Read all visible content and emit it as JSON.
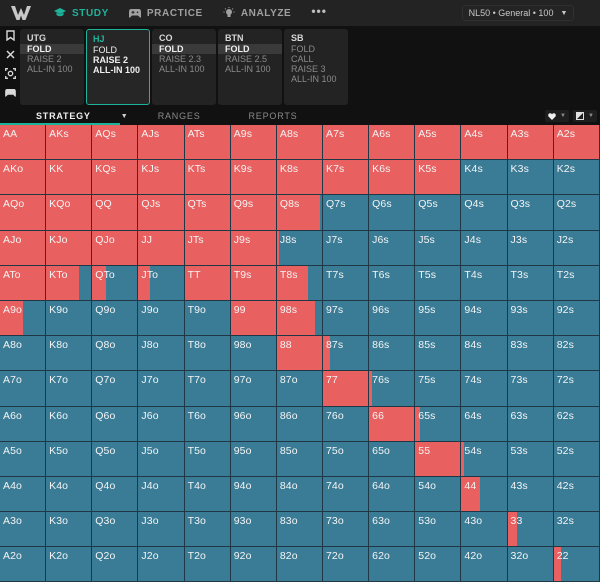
{
  "topbar": {
    "logo": "W",
    "nav": [
      {
        "label": "STUDY",
        "icon": "graduation-cap-icon",
        "active": true
      },
      {
        "label": "PRACTICE",
        "icon": "gamepad-icon",
        "active": false
      },
      {
        "label": "ANALYZE",
        "icon": "lightbulb-icon",
        "active": false
      }
    ],
    "more": "•••",
    "game_select": "NL50 • General • 100",
    "game_select_caret": "▼"
  },
  "sidebar": [
    {
      "icon": "bookmark-icon"
    },
    {
      "icon": "close-icon"
    },
    {
      "icon": "focus-icon"
    },
    {
      "icon": "gamepad-icon"
    }
  ],
  "positions": [
    {
      "name": "UTG",
      "actions": [
        "FOLD",
        "RAISE 2",
        "ALL-IN 100"
      ],
      "selected": 0,
      "active": false
    },
    {
      "name": "HJ",
      "actions": [
        "FOLD",
        "RAISE 2",
        "ALL-IN 100"
      ],
      "selected": -1,
      "active": true
    },
    {
      "name": "CO",
      "actions": [
        "FOLD",
        "RAISE 2.3",
        "ALL-IN 100"
      ],
      "selected": 0,
      "active": false
    },
    {
      "name": "BTN",
      "actions": [
        "FOLD",
        "RAISE 2.5",
        "ALL-IN 100"
      ],
      "selected": 0,
      "active": false
    },
    {
      "name": "SB",
      "actions": [
        "FOLD",
        "CALL",
        "RAISE 3",
        "ALL-IN 100"
      ],
      "selected": -1,
      "active": false
    }
  ],
  "tabs": {
    "strategy": "STRATEGY",
    "strategy_caret": "▼",
    "ranges": "RANGES",
    "reports": "REPORTS"
  },
  "colors": {
    "accent": "#1db39b",
    "raise": "#e96060",
    "fold": "#3a7c96"
  },
  "grid": {
    "rows": [
      [
        [
          "AA",
          1
        ],
        [
          "AKs",
          1
        ],
        [
          "AQs",
          1
        ],
        [
          "AJs",
          1
        ],
        [
          "ATs",
          1
        ],
        [
          "A9s",
          1
        ],
        [
          "A8s",
          1
        ],
        [
          "A7s",
          1
        ],
        [
          "A6s",
          1
        ],
        [
          "A5s",
          1
        ],
        [
          "A4s",
          1
        ],
        [
          "A3s",
          1
        ],
        [
          "A2s",
          1
        ]
      ],
      [
        [
          "AKo",
          1
        ],
        [
          "KK",
          1
        ],
        [
          "KQs",
          1
        ],
        [
          "KJs",
          1
        ],
        [
          "KTs",
          1
        ],
        [
          "K9s",
          1
        ],
        [
          "K8s",
          1
        ],
        [
          "K7s",
          1
        ],
        [
          "K6s",
          1
        ],
        [
          "K5s",
          1
        ],
        [
          "K4s",
          0
        ],
        [
          "K3s",
          0
        ],
        [
          "K2s",
          0
        ]
      ],
      [
        [
          "AQo",
          1
        ],
        [
          "KQo",
          1
        ],
        [
          "QQ",
          1
        ],
        [
          "QJs",
          1
        ],
        [
          "QTs",
          1
        ],
        [
          "Q9s",
          1
        ],
        [
          "Q8s",
          0.95
        ],
        [
          "Q7s",
          0
        ],
        [
          "Q6s",
          0
        ],
        [
          "Q5s",
          0
        ],
        [
          "Q4s",
          0
        ],
        [
          "Q3s",
          0
        ],
        [
          "Q2s",
          0
        ]
      ],
      [
        [
          "AJo",
          1
        ],
        [
          "KJo",
          1
        ],
        [
          "QJo",
          1
        ],
        [
          "JJ",
          1
        ],
        [
          "JTs",
          1
        ],
        [
          "J9s",
          1
        ],
        [
          "J8s",
          0.05
        ],
        [
          "J7s",
          0
        ],
        [
          "J6s",
          0
        ],
        [
          "J5s",
          0
        ],
        [
          "J4s",
          0
        ],
        [
          "J3s",
          0
        ],
        [
          "J2s",
          0
        ]
      ],
      [
        [
          "ATo",
          1
        ],
        [
          "KTo",
          0.73
        ],
        [
          "QTo",
          0.3
        ],
        [
          "JTo",
          0.26
        ],
        [
          "TT",
          1
        ],
        [
          "T9s",
          1
        ],
        [
          "T8s",
          0.68
        ],
        [
          "T7s",
          0
        ],
        [
          "T6s",
          0
        ],
        [
          "T5s",
          0
        ],
        [
          "T4s",
          0
        ],
        [
          "T3s",
          0
        ],
        [
          "T2s",
          0
        ]
      ],
      [
        [
          "A9o",
          0.5
        ],
        [
          "K9o",
          0
        ],
        [
          "Q9o",
          0
        ],
        [
          "J9o",
          0
        ],
        [
          "T9o",
          0
        ],
        [
          "99",
          1
        ],
        [
          "98s",
          0.85
        ],
        [
          "97s",
          0
        ],
        [
          "96s",
          0
        ],
        [
          "95s",
          0
        ],
        [
          "94s",
          0
        ],
        [
          "93s",
          0
        ],
        [
          "92s",
          0
        ]
      ],
      [
        [
          "A8o",
          0
        ],
        [
          "K8o",
          0
        ],
        [
          "Q8o",
          0
        ],
        [
          "J8o",
          0
        ],
        [
          "T8o",
          0
        ],
        [
          "98o",
          0
        ],
        [
          "88",
          1
        ],
        [
          "87s",
          0.15
        ],
        [
          "86s",
          0
        ],
        [
          "85s",
          0
        ],
        [
          "84s",
          0
        ],
        [
          "83s",
          0
        ],
        [
          "82s",
          0
        ]
      ],
      [
        [
          "A7o",
          0
        ],
        [
          "K7o",
          0
        ],
        [
          "Q7o",
          0
        ],
        [
          "J7o",
          0
        ],
        [
          "T7o",
          0
        ],
        [
          "97o",
          0
        ],
        [
          "87o",
          0
        ],
        [
          "77",
          1
        ],
        [
          "76s",
          0.06
        ],
        [
          "75s",
          0
        ],
        [
          "74s",
          0
        ],
        [
          "73s",
          0
        ],
        [
          "72s",
          0
        ]
      ],
      [
        [
          "A6o",
          0
        ],
        [
          "K6o",
          0
        ],
        [
          "Q6o",
          0
        ],
        [
          "J6o",
          0
        ],
        [
          "T6o",
          0
        ],
        [
          "96o",
          0
        ],
        [
          "86o",
          0
        ],
        [
          "76o",
          0
        ],
        [
          "66",
          1
        ],
        [
          "65s",
          0.1
        ],
        [
          "64s",
          0
        ],
        [
          "63s",
          0
        ],
        [
          "62s",
          0
        ]
      ],
      [
        [
          "A5o",
          0
        ],
        [
          "K5o",
          0
        ],
        [
          "Q5o",
          0
        ],
        [
          "J5o",
          0
        ],
        [
          "T5o",
          0
        ],
        [
          "95o",
          0
        ],
        [
          "85o",
          0
        ],
        [
          "75o",
          0
        ],
        [
          "65o",
          0
        ],
        [
          "55",
          1
        ],
        [
          "54s",
          0.05
        ],
        [
          "53s",
          0
        ],
        [
          "52s",
          0
        ]
      ],
      [
        [
          "A4o",
          0
        ],
        [
          "K4o",
          0
        ],
        [
          "Q4o",
          0
        ],
        [
          "J4o",
          0
        ],
        [
          "T4o",
          0
        ],
        [
          "94o",
          0
        ],
        [
          "84o",
          0
        ],
        [
          "74o",
          0
        ],
        [
          "64o",
          0
        ],
        [
          "54o",
          0
        ],
        [
          "44",
          0.42
        ],
        [
          "43s",
          0
        ],
        [
          "42s",
          0
        ]
      ],
      [
        [
          "A3o",
          0
        ],
        [
          "K3o",
          0
        ],
        [
          "Q3o",
          0
        ],
        [
          "J3o",
          0
        ],
        [
          "T3o",
          0
        ],
        [
          "93o",
          0
        ],
        [
          "83o",
          0
        ],
        [
          "73o",
          0
        ],
        [
          "63o",
          0
        ],
        [
          "53o",
          0
        ],
        [
          "43o",
          0
        ],
        [
          "33",
          0.2
        ],
        [
          "32s",
          0
        ]
      ],
      [
        [
          "A2o",
          0
        ],
        [
          "K2o",
          0
        ],
        [
          "Q2o",
          0
        ],
        [
          "J2o",
          0
        ],
        [
          "T2o",
          0
        ],
        [
          "92o",
          0
        ],
        [
          "82o",
          0
        ],
        [
          "72o",
          0
        ],
        [
          "62o",
          0
        ],
        [
          "52o",
          0
        ],
        [
          "42o",
          0
        ],
        [
          "32o",
          0
        ],
        [
          "22",
          0.17
        ]
      ]
    ]
  }
}
